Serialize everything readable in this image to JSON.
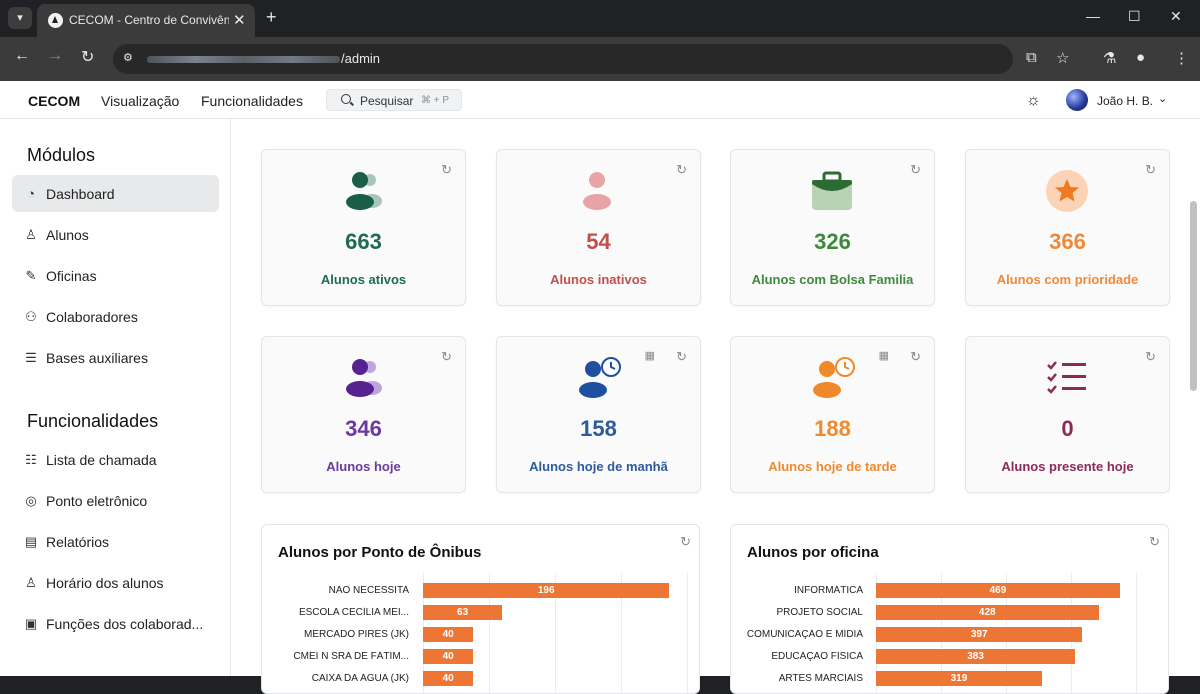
{
  "browser": {
    "tab_title": "CECOM - Centro de Convivência",
    "url_suffix": "/admin"
  },
  "header": {
    "brand": "CECOM",
    "menu": [
      "Visualização",
      "Funcionalidades"
    ],
    "search_label": "Pesquisar",
    "search_shortcut": "⌘ + P",
    "user_name": "João H. B."
  },
  "sidebar": {
    "modules_title": "Módulos",
    "modules": [
      {
        "label": "Dashboard",
        "icon": "gauge-icon",
        "active": true
      },
      {
        "label": "Alunos",
        "icon": "user-icon"
      },
      {
        "label": "Oficinas",
        "icon": "brush-icon"
      },
      {
        "label": "Colaboradores",
        "icon": "users-icon"
      },
      {
        "label": "Bases auxiliares",
        "icon": "database-icon"
      }
    ],
    "features_title": "Funcionalidades",
    "features": [
      {
        "label": "Lista de chamada",
        "icon": "list-check-icon"
      },
      {
        "label": "Ponto eletrônico",
        "icon": "fingerprint-icon"
      },
      {
        "label": "Relatórios",
        "icon": "file-icon"
      },
      {
        "label": "Horário dos alunos",
        "icon": "user-clock-icon"
      },
      {
        "label": "Funções dos colaborad...",
        "icon": "document-icon"
      }
    ]
  },
  "cards": [
    {
      "value": "663",
      "label": "Alunos ativos",
      "color": "#1e6b52",
      "icon": "users-icon"
    },
    {
      "value": "54",
      "label": "Alunos inativos",
      "color": "#c0504d",
      "icon": "user-icon"
    },
    {
      "value": "326",
      "label": "Alunos com Bolsa Familia",
      "color": "#3f8a3a",
      "icon": "briefcase-icon"
    },
    {
      "value": "366",
      "label": "Alunos com prioridade",
      "color": "#ef8a3a",
      "icon": "star-icon"
    },
    {
      "value": "346",
      "label": "Alunos hoje",
      "color": "#6b3aa0",
      "icon": "users-icon"
    },
    {
      "value": "158",
      "label": "Alunos hoje de manhã",
      "color": "#2d5a9e",
      "icon": "user-clock-icon"
    },
    {
      "value": "188",
      "label": "Alunos hoje de tarde",
      "color": "#f08a2c",
      "icon": "user-clock-icon"
    },
    {
      "value": "0",
      "label": "Alunos presente hoje",
      "color": "#8b2a57",
      "icon": "list-check-icon"
    }
  ],
  "panels": [
    {
      "title": "Alunos por Ponto de Ônibus"
    },
    {
      "title": "Alunos por oficina"
    }
  ],
  "chart_data": [
    {
      "type": "bar",
      "title": "Alunos por Ponto de Ônibus",
      "orientation": "horizontal",
      "categories": [
        "NÃO NECESSITA",
        "ESCOLA CECÍLIA MEI...",
        "MERCADO PIRES (JK)",
        "CMEI N SRA DE FÁTIM...",
        "CAIXA DA ÁGUA (JK)"
      ],
      "values": [
        196,
        63,
        40,
        40,
        40
      ],
      "xlim": [
        0,
        210
      ],
      "bar_color": "#ee7634"
    },
    {
      "type": "bar",
      "title": "Alunos por oficina",
      "orientation": "horizontal",
      "categories": [
        "INFORMÁTICA",
        "PROJETO SOCIAL",
        "COMUNICAÇÃO E MÍDIA",
        "EDUCAÇÃO FÍSICA",
        "ARTES MARCIAIS"
      ],
      "values": [
        469,
        428,
        397,
        383,
        319
      ],
      "xlim": [
        0,
        500
      ],
      "bar_color": "#ee7634"
    }
  ]
}
